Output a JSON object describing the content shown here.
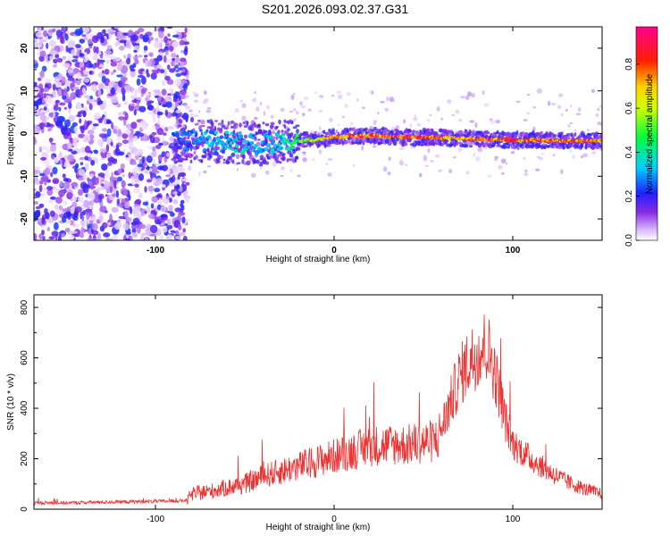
{
  "title": "S201.2026.093.02.37.G31",
  "chart_data": [
    {
      "type": "heatmap",
      "xlabel": "Height of straight line (km)",
      "ylabel": "Frequency (Hz)",
      "xlim": [
        -168,
        150
      ],
      "ylim": [
        -25,
        25
      ],
      "xticks": [
        -100,
        0,
        100
      ],
      "yticks": [
        -20,
        -10,
        0,
        10,
        20
      ],
      "colorbar": {
        "label": "Normalized spectral amplitude",
        "range": [
          0.0,
          0.97
        ],
        "ticks": [
          0.0,
          0.2,
          0.4,
          0.6,
          0.8
        ],
        "colormap": "white-purple-blue-cyan-green-yellow-red-magenta"
      },
      "signal_trace": {
        "x": [
          -90,
          -80,
          -70,
          -60,
          -50,
          -40,
          -30,
          -20,
          -10,
          0,
          10,
          20,
          30,
          40,
          50,
          60,
          70,
          80,
          90,
          100,
          110,
          120,
          130,
          140,
          150
        ],
        "frequency": [
          -1.5,
          -1.6,
          -1.8,
          -2.0,
          -2.2,
          -2.5,
          -2.0,
          -1.8,
          -1.5,
          -0.8,
          -0.6,
          -0.5,
          -0.6,
          -0.8,
          -0.9,
          -1.0,
          -1.1,
          -1.3,
          -1.4,
          -1.5,
          -1.5,
          -1.6,
          -1.7,
          -1.7,
          -1.8
        ],
        "amplitude": [
          0.3,
          0.3,
          0.35,
          0.4,
          0.4,
          0.35,
          0.4,
          0.55,
          0.7,
          0.8,
          0.85,
          0.9,
          0.92,
          0.95,
          0.93,
          0.85,
          0.8,
          0.88,
          0.9,
          0.92,
          0.88,
          0.9,
          0.92,
          0.9,
          0.85
        ]
      },
      "noise_region": {
        "x_range": [
          -168,
          -88
        ],
        "amplitude_range": [
          0.02,
          0.25
        ]
      }
    },
    {
      "type": "line",
      "xlabel": "Height of straight line (km)",
      "ylabel": "SNR (10 * v/v)",
      "xlim": [
        -168,
        150
      ],
      "ylim": [
        0,
        850
      ],
      "xticks": [
        -100,
        0,
        100
      ],
      "yticks": [
        0,
        200,
        400,
        600,
        800
      ],
      "series": [
        {
          "name": "SNR",
          "color": "#ee3333",
          "x": [
            -168,
            -150,
            -130,
            -110,
            -90,
            -82,
            -80,
            -70,
            -60,
            -50,
            -40,
            -30,
            -20,
            -10,
            0,
            10,
            20,
            30,
            40,
            50,
            55,
            58,
            62,
            66,
            70,
            75,
            80,
            85,
            88,
            92,
            96,
            100,
            110,
            120,
            130,
            140,
            150
          ],
          "y": [
            25,
            25,
            28,
            30,
            32,
            35,
            60,
            70,
            85,
            100,
            130,
            150,
            170,
            190,
            210,
            230,
            250,
            255,
            255,
            265,
            270,
            280,
            360,
            440,
            520,
            580,
            620,
            650,
            600,
            480,
            350,
            260,
            200,
            150,
            110,
            80,
            60
          ]
        }
      ]
    }
  ]
}
